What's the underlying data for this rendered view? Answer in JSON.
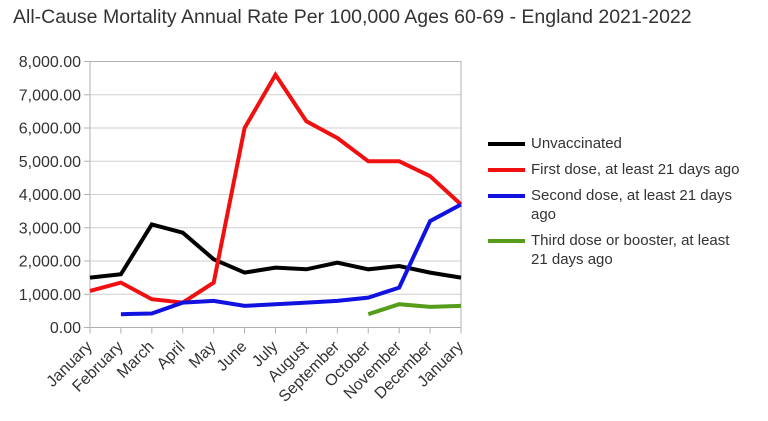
{
  "chart_data": {
    "type": "line",
    "title": "All-Cause Mortality Annual Rate Per 100,000 Ages 60-69 - England 2021-2022",
    "categories": [
      "January",
      "February",
      "March",
      "April",
      "May",
      "June",
      "July",
      "August",
      "September",
      "October",
      "November",
      "December",
      "January"
    ],
    "series": [
      {
        "name": "Unvaccinated",
        "color": "#000000",
        "values": [
          1500,
          1600,
          3100,
          2850,
          2050,
          1650,
          1800,
          1750,
          1950,
          1750,
          1850,
          1650,
          1500
        ]
      },
      {
        "name": "First dose, at least 21 days ago",
        "color": "#f01010",
        "values": [
          1100,
          1350,
          850,
          750,
          1350,
          6000,
          7600,
          6200,
          5700,
          5000,
          5000,
          4550,
          3700
        ]
      },
      {
        "name": "Second dose, at least 21 days ago",
        "color": "#1212e0",
        "values": [
          null,
          400,
          420,
          750,
          800,
          650,
          700,
          750,
          800,
          900,
          1200,
          3200,
          3700
        ]
      },
      {
        "name": "Third dose or booster, at least 21 days ago",
        "color": "#579d1c",
        "values": [
          null,
          null,
          null,
          null,
          null,
          null,
          null,
          null,
          null,
          400,
          700,
          620,
          650
        ]
      }
    ],
    "ylim": [
      0,
      8000
    ],
    "ytick_step": 1000,
    "ytick_labels": [
      "0.00",
      "1,000.00",
      "2,000.00",
      "3,000.00",
      "4,000.00",
      "5,000.00",
      "6,000.00",
      "7,000.00",
      "8,000.00"
    ],
    "grid": "horizontal",
    "legend_position": "right",
    "colors": {
      "axis": "#b0b0b0",
      "grid": "#cfcfcf",
      "text": "#333333",
      "background": "#ffffff"
    }
  }
}
